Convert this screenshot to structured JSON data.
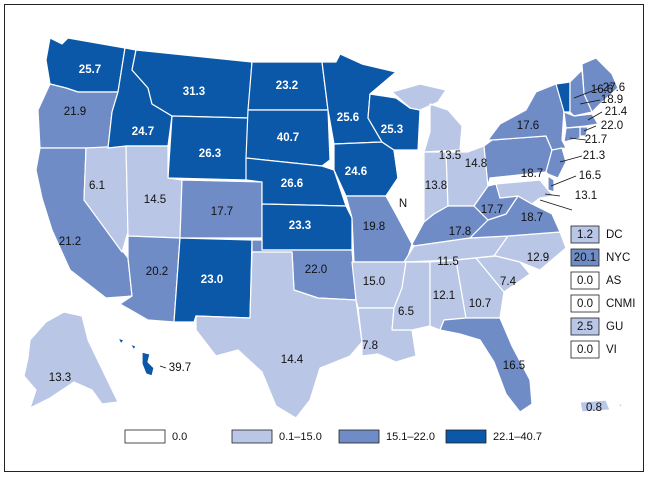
{
  "colors": {
    "c0": "#ffffff",
    "c1": "#b9c6e6",
    "c2": "#6f8cc6",
    "c3": "#0b57a8",
    "border": "#ffffff",
    "ink": "#111111"
  },
  "legend": [
    {
      "label": "0.0",
      "color": "c0"
    },
    {
      "label": "0.1–15.0",
      "color": "c1"
    },
    {
      "label": "15.1–22.0",
      "color": "c2"
    },
    {
      "label": "22.1–40.7",
      "color": "c3"
    }
  ],
  "states": {
    "WA": "25.7",
    "OR": "21.9",
    "CA": "21.2",
    "NV": "6.1",
    "ID": "24.7",
    "MT": "31.3",
    "WY": "26.3",
    "UT": "14.5",
    "AZ": "20.2",
    "CO": "17.7",
    "NM": "23.0",
    "ND": "23.2",
    "SD": "40.7",
    "NE": "26.6",
    "KS": "23.3",
    "OK": "22.0",
    "TX": "14.4",
    "MN": "25.6",
    "IA": "24.6",
    "MO": "19.8",
    "AR": "15.0",
    "LA": "7.8",
    "WI": "25.3",
    "IL": "N",
    "MI": "13.5",
    "IN": "13.8",
    "OH": "14.8",
    "KY": "17.8",
    "TN": "11.5",
    "MS": "6.5",
    "AL": "12.1",
    "GA": "10.7",
    "FL": "16.5",
    "SC": "7.4",
    "NC": "12.9",
    "VA": "18.7",
    "WV": "17.7",
    "PA": "18.7",
    "NY": "17.6",
    "ME": "16.6",
    "VT": "27.6",
    "NH": "18.9",
    "MA": "21.4",
    "RI": "22.0",
    "CT": "21.7",
    "NJ": "21.3",
    "DE": "16.5",
    "MD": "13.1",
    "AK": "13.3",
    "HI": "39.7",
    "PR": "0.8"
  },
  "territories": [
    {
      "value": "1.2",
      "name": "DC",
      "color": "c1"
    },
    {
      "value": "20.1",
      "name": "NYC",
      "color": "c2"
    },
    {
      "value": "0.0",
      "name": "AS",
      "color": "c0"
    },
    {
      "value": "0.0",
      "name": "CNMI",
      "color": "c0"
    },
    {
      "value": "2.5",
      "name": "GU",
      "color": "c1"
    },
    {
      "value": "0.0",
      "name": "VI",
      "color": "c0"
    }
  ]
}
